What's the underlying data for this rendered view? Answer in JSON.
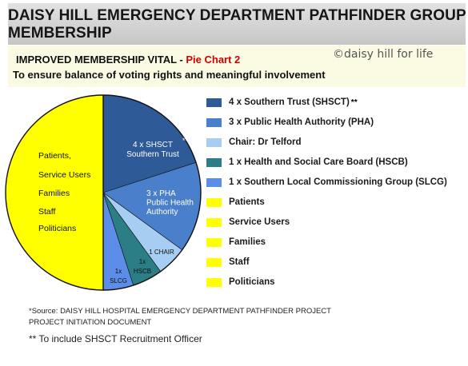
{
  "header": {
    "title_line1": "DAISY HILL EMERGENCY DEPARTMENT PATHFINDER GROUP",
    "title_line2": "MEMBERSHIP",
    "subtitle_black": "IMPROVED MEMBERSHIP VITAL - ",
    "subtitle_red": "Pie Chart 2",
    "watermark": "©daisy hill for life",
    "tagline": "To ensure balance of voting rights and meaningful involvement"
  },
  "chart_data": {
    "type": "pie",
    "title": "Pie Chart 2",
    "slices": [
      {
        "legend": "4 x Southern Trust (SHSCT)",
        "legend_sup": "**",
        "label_lines": [
          "4 x SHSCT",
          "Southern Trust"
        ],
        "label_sup": "**",
        "value": 4,
        "color": "#2e5a98"
      },
      {
        "legend": "3 x Public Health Authority (PHA)",
        "label_lines": [
          "3 x PHA",
          "Public Health",
          "Authority"
        ],
        "value": 3,
        "color": "#4a7fcb"
      },
      {
        "legend": "Chair: Dr Telford",
        "label_lines": [
          "1 CHAIR"
        ],
        "value": 1,
        "color": "#a8cdf2"
      },
      {
        "legend": "1 x Health and Social Care Board (HSCB)",
        "label_lines": [
          "1x",
          "HSCB"
        ],
        "value": 1,
        "color": "#2b7d86"
      },
      {
        "legend": "1 x Southern Local Commissioning Group (SLCG)",
        "label_lines": [
          "1x",
          "SLCG"
        ],
        "value": 1,
        "color": "#5c8de8"
      },
      {
        "legend": "Patients",
        "label_lines": [
          "Patients,"
        ],
        "value": 2,
        "color": "#ffff00"
      },
      {
        "legend": "Service Users",
        "label_lines": [
          "Service Users"
        ],
        "value": 2,
        "color": "#ffff00"
      },
      {
        "legend": "Families",
        "label_lines": [
          "Families"
        ],
        "value": 2,
        "color": "#ffff00"
      },
      {
        "legend": "Staff",
        "label_lines": [
          "Staff"
        ],
        "value": 2,
        "color": "#ffff00"
      },
      {
        "legend": "Politicians",
        "label_lines": [
          "Politicians"
        ],
        "value": 2,
        "color": "#ffff00"
      }
    ]
  },
  "notes": {
    "source_line1": "*Source: DAISY HILL HOSPITAL EMERGENCY DEPARTMENT PATHFINDER PROJECT",
    "source_line2": "PROJECT INITIATION DOCUMENT",
    "footnote": "** To include SHSCT Recruitment Officer"
  }
}
